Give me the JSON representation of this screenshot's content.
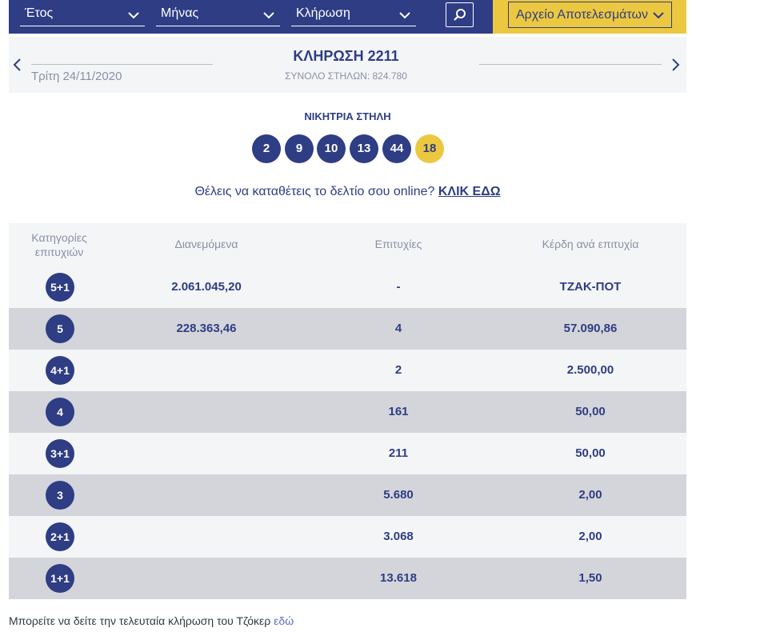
{
  "filters": {
    "year_label": "Έτος",
    "month_label": "Μήνας",
    "draw_label": "Κλήρωση",
    "archive_label": "Αρχείο Αποτελεσμάτων"
  },
  "draw": {
    "title": "ΚΛΗΡΩΣΗ 2211",
    "total_columns": "ΣΥΝΟΛΟ ΣΤΗΛΩΝ: 824.780",
    "date": "Τρίτη 24/11/2020"
  },
  "winning": {
    "title": "ΝΙΚΗΤΡΙΑ ΣΤΗΛΗ",
    "numbers": [
      "2",
      "9",
      "10",
      "13",
      "44"
    ],
    "joker": "18"
  },
  "online": {
    "text": "Θέλεις να καταθέτεις το δελτίο σου online?",
    "link": "ΚΛΙΚ ΕΔΩ"
  },
  "table": {
    "headers": {
      "category": "Κατηγορίες επιτυχιών",
      "distributed": "Διανεμόμενα",
      "winners": "Επιτυχίες",
      "prize": "Κέρδη ανά επιτυχία"
    },
    "rows": [
      {
        "category": "5+1",
        "distributed": "2.061.045,20",
        "winners": "-",
        "prize": "ΤΖΑΚ-ΠΟΤ"
      },
      {
        "category": "5",
        "distributed": "228.363,46",
        "winners": "4",
        "prize": "57.090,86"
      },
      {
        "category": "4+1",
        "distributed": "",
        "winners": "2",
        "prize": "2.500,00"
      },
      {
        "category": "4",
        "distributed": "",
        "winners": "161",
        "prize": "50,00"
      },
      {
        "category": "3+1",
        "distributed": "",
        "winners": "211",
        "prize": "50,00"
      },
      {
        "category": "3",
        "distributed": "",
        "winners": "5.680",
        "prize": "2,00"
      },
      {
        "category": "2+1",
        "distributed": "",
        "winners": "3.068",
        "prize": "2,00"
      },
      {
        "category": "1+1",
        "distributed": "",
        "winners": "13.618",
        "prize": "1,50"
      }
    ]
  },
  "footer": {
    "text": "Μπορείτε να δείτε την τελευταία κλήρωση του Τζόκερ",
    "link": "εδώ"
  },
  "colors": {
    "primary": "#2e3d84",
    "accent": "#ecc840",
    "row_light": "#f4f5f7",
    "row_dark": "#d4d5da"
  }
}
